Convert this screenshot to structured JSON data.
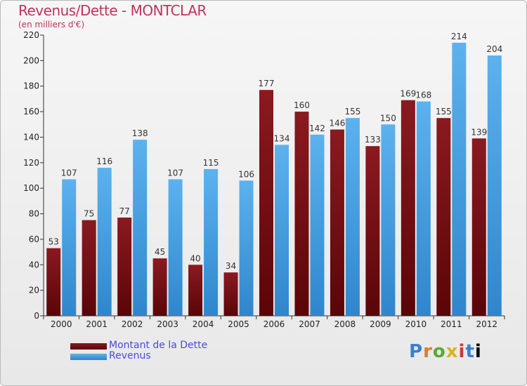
{
  "chart_data": {
    "type": "bar",
    "title": "Revenus/Dette - MONTCLAR",
    "subtitle": "(en milliers d'€)",
    "categories": [
      "2000",
      "2001",
      "2002",
      "2003",
      "2004",
      "2005",
      "2006",
      "2007",
      "2008",
      "2009",
      "2010",
      "2011",
      "2012"
    ],
    "series": [
      {
        "name": "Montant de la Dette",
        "color": "#6b0d12",
        "values": [
          53,
          75,
          77,
          45,
          40,
          34,
          177,
          160,
          146,
          133,
          169,
          155,
          139
        ]
      },
      {
        "name": "Revenus",
        "color": "#4ea6e6",
        "values": [
          107,
          116,
          138,
          107,
          115,
          106,
          134,
          142,
          155,
          150,
          168,
          214,
          204
        ]
      }
    ],
    "yticks": [
      0,
      20,
      40,
      60,
      80,
      100,
      120,
      140,
      160,
      180,
      200,
      220
    ],
    "ylim": [
      0,
      220
    ],
    "grid": false,
    "legend": "bottom-left"
  },
  "logo": {
    "letters": [
      "P",
      "r",
      "o",
      "x",
      "i",
      "t",
      "i"
    ]
  }
}
